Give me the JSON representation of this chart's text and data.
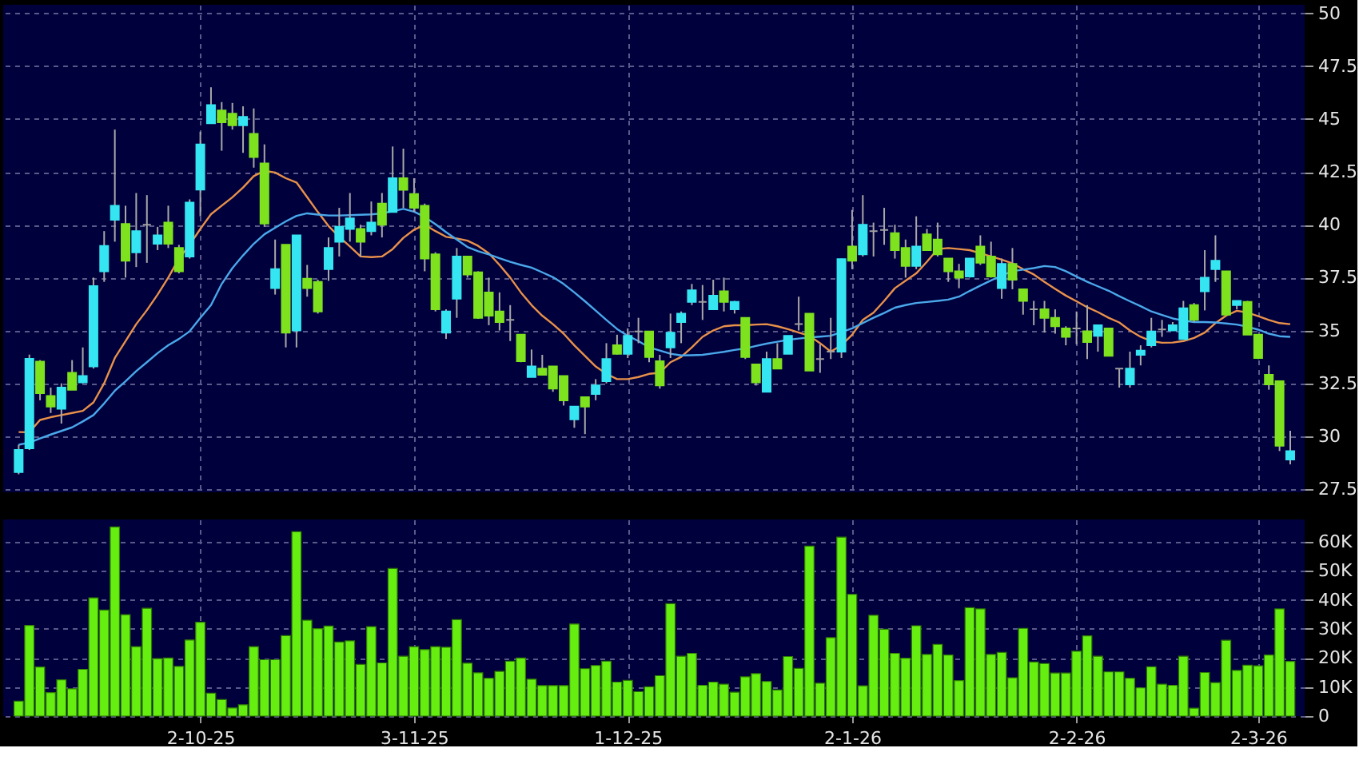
{
  "chart_data": [
    {
      "type": "candlestick",
      "ylim": [
        27.35,
        50.4
      ],
      "yticks": [
        27.5,
        30,
        32.5,
        35,
        37.5,
        40,
        42.5,
        45,
        47.5,
        50
      ],
      "grid": true,
      "tick_labels": "y",
      "categories": [
        null,
        null,
        null,
        null,
        null,
        null,
        null,
        null,
        null,
        null,
        null,
        null,
        null,
        null,
        null,
        null,
        null,
        null,
        null,
        null,
        null,
        null,
        null,
        null,
        null,
        null,
        null,
        null,
        null,
        null,
        null,
        null,
        null,
        null,
        null,
        null,
        null,
        null,
        null,
        null,
        null,
        null,
        null,
        null,
        null,
        null,
        null,
        null,
        null,
        null,
        null,
        null,
        null,
        null,
        null,
        null,
        null,
        null,
        null,
        null,
        null,
        null,
        null,
        null,
        null,
        null,
        null,
        null,
        null,
        null,
        null,
        null,
        null,
        null,
        null,
        null,
        null,
        null,
        null,
        null,
        null,
        null,
        null,
        null,
        null,
        null,
        null,
        null,
        null,
        null,
        null,
        null,
        null,
        null,
        null,
        null,
        null,
        null,
        null,
        null,
        null,
        null,
        null,
        null,
        null,
        null,
        null,
        null,
        null,
        null,
        null,
        null,
        null,
        null,
        null,
        null,
        null,
        null,
        null,
        null
      ],
      "ohlc": [
        [
          28.3,
          29.6,
          28.2,
          29.35
        ],
        [
          29.43,
          33.86,
          29.35,
          33.66
        ],
        [
          33.53,
          33.6,
          31.7,
          32.04
        ],
        [
          31.9,
          32.3,
          31.1,
          31.4
        ],
        [
          31.3,
          32.5,
          30.6,
          32.3
        ],
        [
          33.0,
          33.6,
          32.2,
          32.2
        ],
        [
          32.55,
          34.2,
          32.5,
          32.85
        ],
        [
          33.3,
          37.5,
          33.2,
          37.1
        ],
        [
          37.8,
          39.7,
          37.3,
          39.0
        ],
        [
          40.24,
          44.5,
          39.2,
          40.9
        ],
        [
          40.04,
          40.9,
          37.5,
          38.3
        ],
        [
          38.7,
          41.5,
          38.0,
          39.7
        ],
        [
          40.0,
          41.4,
          38.2,
          40.0
        ],
        [
          39.1,
          39.9,
          38.8,
          39.5
        ],
        [
          40.1,
          40.9,
          38.9,
          39.1
        ],
        [
          38.9,
          39.05,
          37.7,
          37.8
        ],
        [
          38.5,
          41.2,
          38.4,
          41.05
        ],
        [
          41.66,
          44.4,
          40.4,
          43.8
        ],
        [
          44.8,
          46.5,
          44.8,
          45.66
        ],
        [
          45.4,
          45.8,
          43.5,
          44.85
        ],
        [
          45.25,
          45.76,
          44.5,
          44.7
        ],
        [
          44.7,
          45.6,
          43.4,
          45.1
        ],
        [
          44.3,
          45.5,
          42.7,
          43.2
        ],
        [
          42.9,
          43.8,
          39.9,
          40.06
        ],
        [
          37.0,
          39.3,
          36.7,
          37.9
        ],
        [
          39.05,
          39.05,
          34.2,
          34.9
        ],
        [
          35.0,
          39.5,
          34.2,
          39.5
        ],
        [
          37.45,
          38.1,
          36.6,
          37.0
        ],
        [
          37.3,
          37.4,
          35.8,
          35.9
        ],
        [
          37.9,
          39.4,
          37.35,
          38.9
        ],
        [
          39.2,
          40.8,
          38.5,
          39.9
        ],
        [
          39.8,
          41.5,
          39.2,
          40.3
        ],
        [
          39.8,
          40.0,
          38.5,
          39.2
        ],
        [
          39.7,
          41.1,
          39.5,
          40.1
        ],
        [
          41.0,
          41.5,
          39.4,
          40.0
        ],
        [
          40.6,
          43.7,
          40.6,
          42.2
        ],
        [
          42.2,
          43.6,
          40.8,
          41.65
        ],
        [
          41.45,
          42.2,
          40.6,
          40.8
        ],
        [
          40.9,
          41.0,
          37.8,
          38.4
        ],
        [
          38.6,
          38.7,
          35.9,
          36.0
        ],
        [
          34.9,
          36.0,
          34.6,
          35.9
        ],
        [
          36.5,
          38.9,
          35.6,
          38.5
        ],
        [
          38.5,
          38.5,
          37.5,
          37.65
        ],
        [
          37.75,
          37.8,
          35.55,
          35.6
        ],
        [
          36.8,
          37.5,
          35.25,
          35.7
        ],
        [
          35.9,
          36.8,
          35.0,
          35.4
        ],
        [
          35.5,
          36.2,
          34.5,
          35.5
        ],
        [
          34.8,
          34.8,
          33.5,
          33.55
        ],
        [
          32.8,
          34.1,
          32.8,
          33.3
        ],
        [
          33.2,
          33.85,
          32.9,
          32.9
        ],
        [
          33.3,
          33.3,
          32.1,
          32.25
        ],
        [
          32.85,
          32.85,
          31.45,
          31.7
        ],
        [
          30.8,
          31.4,
          30.4,
          31.4
        ],
        [
          31.85,
          31.85,
          30.1,
          31.4
        ],
        [
          32.0,
          32.7,
          31.7,
          32.4
        ],
        [
          32.6,
          34.4,
          32.5,
          33.65
        ],
        [
          34.3,
          34.8,
          33.86,
          33.9
        ],
        [
          33.9,
          35.1,
          33.7,
          34.75
        ],
        [
          34.95,
          35.6,
          34.4,
          34.95
        ],
        [
          34.95,
          34.95,
          33.5,
          33.75
        ],
        [
          33.55,
          33.85,
          32.25,
          32.4
        ],
        [
          34.2,
          35.8,
          33.7,
          34.9
        ],
        [
          35.4,
          35.9,
          34.4,
          35.8
        ],
        [
          36.35,
          37.2,
          36.2,
          36.9
        ],
        [
          36.35,
          37.15,
          35.5,
          36.35
        ],
        [
          36.0,
          37.4,
          36.0,
          36.65
        ],
        [
          36.85,
          37.5,
          35.9,
          36.35
        ],
        [
          36.0,
          36.4,
          35.8,
          36.35
        ],
        [
          35.6,
          35.6,
          33.65,
          33.75
        ],
        [
          33.4,
          33.4,
          32.4,
          32.55
        ],
        [
          32.1,
          34.0,
          32.1,
          33.65
        ],
        [
          33.65,
          34.4,
          33.2,
          33.2
        ],
        [
          33.9,
          34.75,
          33.9,
          34.75
        ],
        [
          35.3,
          36.6,
          35.0,
          35.3
        ],
        [
          35.8,
          35.8,
          33.1,
          33.1
        ],
        [
          33.65,
          34.35,
          33.0,
          33.65
        ],
        [
          34.0,
          35.6,
          33.65,
          34.0
        ],
        [
          34.0,
          38.4,
          33.7,
          38.37
        ],
        [
          38.97,
          40.7,
          37.9,
          38.3
        ],
        [
          38.6,
          41.4,
          38.5,
          40.0
        ],
        [
          39.7,
          40.1,
          38.5,
          39.7
        ],
        [
          39.75,
          40.8,
          39.05,
          39.75
        ],
        [
          39.6,
          40.0,
          38.4,
          38.8
        ],
        [
          38.9,
          39.3,
          37.5,
          38.05
        ],
        [
          38.05,
          40.4,
          37.9,
          38.97
        ],
        [
          39.55,
          39.8,
          38.8,
          38.8
        ],
        [
          39.3,
          40.1,
          38.5,
          38.6
        ],
        [
          38.4,
          38.4,
          37.3,
          37.8
        ],
        [
          37.8,
          38.15,
          37.0,
          37.5
        ],
        [
          37.55,
          38.4,
          37.5,
          38.4
        ],
        [
          38.97,
          39.5,
          38.1,
          38.2
        ],
        [
          38.5,
          39.2,
          37.5,
          37.55
        ],
        [
          37.0,
          38.4,
          36.5,
          38.15
        ],
        [
          38.15,
          38.9,
          36.95,
          37.4
        ],
        [
          36.95,
          36.95,
          35.75,
          36.4
        ],
        [
          36.0,
          36.4,
          35.25,
          36.0
        ],
        [
          36.0,
          36.4,
          34.9,
          35.6
        ],
        [
          35.6,
          36.0,
          34.85,
          35.2
        ],
        [
          35.1,
          35.2,
          34.3,
          34.7
        ],
        [
          35.1,
          35.9,
          34.35,
          35.1
        ],
        [
          34.96,
          36.2,
          33.65,
          34.45
        ],
        [
          34.75,
          35.25,
          34.0,
          35.25
        ],
        [
          35.1,
          35.1,
          33.8,
          33.8
        ],
        [
          33.2,
          33.2,
          32.3,
          33.2
        ],
        [
          32.45,
          34.0,
          32.3,
          33.2
        ],
        [
          33.85,
          34.3,
          33.35,
          34.05
        ],
        [
          34.3,
          35.6,
          34.2,
          34.95
        ],
        [
          35.05,
          35.5,
          34.7,
          35.05
        ],
        [
          35.0,
          35.4,
          35.0,
          35.25
        ],
        [
          34.6,
          36.4,
          34.6,
          36.05
        ],
        [
          36.2,
          36.3,
          35.4,
          35.5
        ],
        [
          36.85,
          38.8,
          35.95,
          37.5
        ],
        [
          37.9,
          39.5,
          37.3,
          38.3
        ],
        [
          37.8,
          37.8,
          35.75,
          35.75
        ],
        [
          36.2,
          36.4,
          36.0,
          36.4
        ],
        [
          36.35,
          36.4,
          34.8,
          34.8
        ],
        [
          34.8,
          34.8,
          33.65,
          33.7
        ],
        [
          32.9,
          33.35,
          32.2,
          32.45
        ],
        [
          32.6,
          32.6,
          29.3,
          29.55
        ],
        [
          28.9,
          30.26,
          28.67,
          29.3
        ]
      ],
      "colors": [
        "#35e6f2",
        "#35e6f2",
        "#7ee21e",
        "#7ee21e",
        "#35e6f2",
        "#7ee21e",
        "#35e6f2",
        "#35e6f2",
        "#35e6f2",
        "#35e6f2",
        "#7ee21e",
        "#35e6f2",
        "#a0a0a0",
        "#35e6f2",
        "#7ee21e",
        "#7ee21e",
        "#35e6f2",
        "#35e6f2",
        "#35e6f2",
        "#7ee21e",
        "#7ee21e",
        "#35e6f2",
        "#7ee21e",
        "#7ee21e",
        "#35e6f2",
        "#7ee21e",
        "#35e6f2",
        "#7ee21e",
        "#7ee21e",
        "#35e6f2",
        "#35e6f2",
        "#35e6f2",
        "#7ee21e",
        "#35e6f2",
        "#7ee21e",
        "#35e6f2",
        "#7ee21e",
        "#7ee21e",
        "#7ee21e",
        "#7ee21e",
        "#35e6f2",
        "#35e6f2",
        "#7ee21e",
        "#7ee21e",
        "#7ee21e",
        "#7ee21e",
        "#a0a0a0",
        "#7ee21e",
        "#35e6f2",
        "#7ee21e",
        "#7ee21e",
        "#7ee21e",
        "#35e6f2",
        "#7ee21e",
        "#35e6f2",
        "#35e6f2",
        "#7ee21e",
        "#35e6f2",
        "#a0a0a0",
        "#7ee21e",
        "#7ee21e",
        "#35e6f2",
        "#35e6f2",
        "#35e6f2",
        "#a0a0a0",
        "#35e6f2",
        "#7ee21e",
        "#35e6f2",
        "#7ee21e",
        "#7ee21e",
        "#35e6f2",
        "#7ee21e",
        "#35e6f2",
        "#a0a0a0",
        "#7ee21e",
        "#a0a0a0",
        "#a0a0a0",
        "#35e6f2",
        "#7ee21e",
        "#35e6f2",
        "#a0a0a0",
        "#a0a0a0",
        "#7ee21e",
        "#7ee21e",
        "#35e6f2",
        "#7ee21e",
        "#7ee21e",
        "#7ee21e",
        "#7ee21e",
        "#35e6f2",
        "#7ee21e",
        "#7ee21e",
        "#35e6f2",
        "#7ee21e",
        "#7ee21e",
        "#a0a0a0",
        "#7ee21e",
        "#7ee21e",
        "#7ee21e",
        "#a0a0a0",
        "#7ee21e",
        "#35e6f2",
        "#7ee21e",
        "#a0a0a0",
        "#35e6f2",
        "#35e6f2",
        "#35e6f2",
        "#a0a0a0",
        "#35e6f2",
        "#35e6f2",
        "#7ee21e",
        "#35e6f2",
        "#35e6f2",
        "#7ee21e",
        "#35e6f2",
        "#7ee21e",
        "#7ee21e",
        "#7ee21e",
        "#7ee21e",
        "#35e6f2"
      ],
      "series": [
        {
          "type": "line",
          "color": "#e8914a",
          "values": [
            30.2,
            30.19,
            30.77,
            30.9,
            31.0,
            31.1,
            31.2,
            31.6,
            32.5,
            33.7,
            34.5,
            35.3,
            35.96,
            36.7,
            37.5,
            38.4,
            39.05,
            39.8,
            40.5,
            40.9,
            41.3,
            41.76,
            42.3,
            42.55,
            42.47,
            42.2,
            42.0,
            41.3,
            40.6,
            39.94,
            39.43,
            38.97,
            38.5,
            38.47,
            38.5,
            38.85,
            39.38,
            39.76,
            40.0,
            39.7,
            39.43,
            39.35,
            39.25,
            39.0,
            38.65,
            38.1,
            37.5,
            36.8,
            36.2,
            35.7,
            35.3,
            34.85,
            34.3,
            33.8,
            33.3,
            32.95,
            32.7,
            32.7,
            32.8,
            32.95,
            33.0,
            33.5,
            33.75,
            34.2,
            34.7,
            35.0,
            35.2,
            35.25,
            35.25,
            35.28,
            35.3,
            35.2,
            35.06,
            34.9,
            34.75,
            34.4,
            34.0,
            34.3,
            34.8,
            35.5,
            35.84,
            36.4,
            37.0,
            37.35,
            37.7,
            38.25,
            38.85,
            38.9,
            38.85,
            38.8,
            38.65,
            38.5,
            38.35,
            38.17,
            37.9,
            37.65,
            37.3,
            36.97,
            36.65,
            36.38,
            36.1,
            35.87,
            35.6,
            35.38,
            35.0,
            34.7,
            34.5,
            34.42,
            34.43,
            34.5,
            34.65,
            34.9,
            35.35,
            35.7,
            35.93,
            35.85,
            35.68,
            35.5,
            35.35,
            35.3
          ]
        },
        {
          "type": "line",
          "color": "#4aa8ea",
          "values": [
            29.6,
            29.7,
            29.9,
            30.08,
            30.25,
            30.42,
            30.7,
            31.0,
            31.55,
            32.15,
            32.6,
            33.08,
            33.5,
            33.93,
            34.3,
            34.6,
            34.96,
            35.6,
            36.2,
            37.2,
            37.95,
            38.55,
            39.1,
            39.55,
            39.86,
            40.16,
            40.42,
            40.54,
            40.48,
            40.44,
            40.44,
            40.45,
            40.47,
            40.49,
            40.54,
            40.64,
            40.75,
            40.62,
            40.37,
            40.03,
            39.65,
            39.3,
            38.95,
            38.75,
            38.6,
            38.42,
            38.25,
            38.1,
            37.97,
            37.75,
            37.52,
            37.2,
            36.8,
            36.38,
            35.94,
            35.5,
            35.07,
            34.75,
            34.5,
            34.2,
            34.05,
            33.9,
            33.82,
            33.83,
            33.85,
            33.92,
            33.99,
            34.08,
            34.15,
            34.27,
            34.38,
            34.47,
            34.56,
            34.62,
            34.67,
            34.71,
            34.75,
            34.92,
            35.1,
            35.35,
            35.6,
            35.83,
            36.08,
            36.2,
            36.3,
            36.35,
            36.4,
            36.46,
            36.6,
            36.87,
            37.12,
            37.37,
            37.6,
            37.8,
            37.88,
            37.95,
            38.05,
            38.0,
            37.8,
            37.55,
            37.3,
            37.09,
            36.88,
            36.62,
            36.38,
            36.15,
            35.9,
            35.73,
            35.57,
            35.47,
            35.4,
            35.4,
            35.38,
            35.33,
            35.28,
            35.18,
            35.04,
            34.85,
            34.73,
            34.7
          ]
        }
      ]
    },
    {
      "type": "bar",
      "color": "#66ee11",
      "ylim": [
        0,
        67700
      ],
      "yticks": [
        0,
        {
          "value": 10000,
          "label": "10K"
        },
        {
          "value": 20000,
          "label": "20K"
        },
        {
          "value": 30000,
          "label": "30K"
        },
        {
          "value": 40000,
          "label": "40K"
        },
        {
          "value": 50000,
          "label": "50K"
        },
        {
          "value": 60000,
          "label": "60K"
        }
      ],
      "grid": true,
      "categories": [
        null,
        null,
        null,
        null,
        null,
        null,
        null,
        null,
        null,
        null,
        null,
        null,
        null,
        null,
        null,
        null,
        null,
        "2-10-25",
        null,
        null,
        null,
        null,
        null,
        null,
        null,
        null,
        null,
        null,
        null,
        null,
        null,
        null,
        null,
        null,
        null,
        null,
        null,
        "3-11-25",
        null,
        null,
        null,
        null,
        null,
        null,
        null,
        null,
        null,
        null,
        null,
        null,
        null,
        null,
        null,
        null,
        null,
        null,
        null,
        "1-12-25",
        null,
        null,
        null,
        null,
        null,
        null,
        null,
        null,
        null,
        null,
        null,
        null,
        null,
        null,
        null,
        null,
        null,
        null,
        null,
        null,
        "2-1-26",
        null,
        null,
        null,
        null,
        null,
        null,
        null,
        null,
        null,
        null,
        null,
        null,
        null,
        null,
        null,
        null,
        null,
        null,
        null,
        null,
        "2-2-26",
        null,
        null,
        null,
        null,
        null,
        null,
        null,
        null,
        null,
        null,
        null,
        null,
        null,
        null,
        null,
        null,
        "2-3-26",
        null,
        null,
        null
      ],
      "values": [
        5100,
        31200,
        16900,
        8100,
        12500,
        9400,
        16100,
        40700,
        36500,
        65100,
        34900,
        23900,
        37100,
        19800,
        20000,
        17100,
        26200,
        32300,
        7900,
        5700,
        2800,
        3900,
        23900,
        19400,
        19400,
        27700,
        63500,
        33000,
        30100,
        31000,
        25500,
        25900,
        17800,
        30800,
        18300,
        50800,
        20600,
        23900,
        22900,
        23900,
        23700,
        33200,
        18200,
        14900,
        13000,
        15400,
        18900,
        20000,
        12700,
        10500,
        10500,
        10500,
        31700,
        16300,
        17400,
        18900,
        11700,
        12300,
        8400,
        10100,
        13900,
        38700,
        20600,
        21600,
        10600,
        11700,
        11000,
        8200,
        13500,
        14600,
        11900,
        9000,
        20500,
        16400,
        58500,
        11300,
        27000,
        61600,
        41900,
        10400,
        34700,
        29900,
        21600,
        19900,
        31100,
        21200,
        24700,
        21000,
        12200,
        37300,
        36900,
        21200,
        21900,
        13200,
        30200,
        18600,
        18100,
        14800,
        14800,
        22300,
        27600,
        20600,
        15200,
        15200,
        13000,
        9700,
        17000,
        11000,
        10600,
        20600,
        2700,
        15000,
        11500,
        26100,
        15700,
        17500,
        17300,
        21000,
        36900,
        18800
      ]
    }
  ]
}
